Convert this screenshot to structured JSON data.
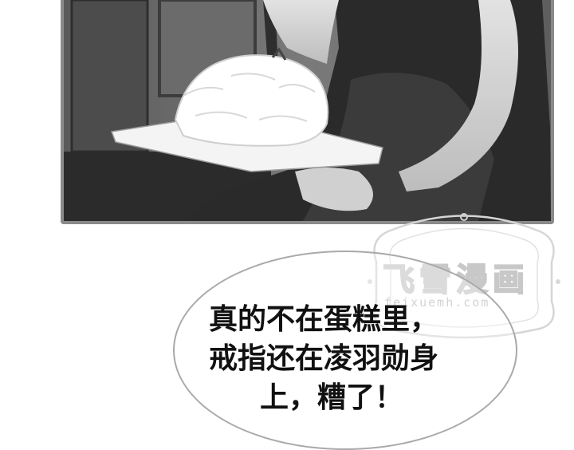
{
  "watermark": {
    "title": "飞雪漫画",
    "url": "feixuemh.com"
  },
  "speech_bubble": {
    "lines": [
      "真的不在蛋糕里，",
      "戒指还在凌羽勋身",
      "上，糟了！"
    ]
  }
}
